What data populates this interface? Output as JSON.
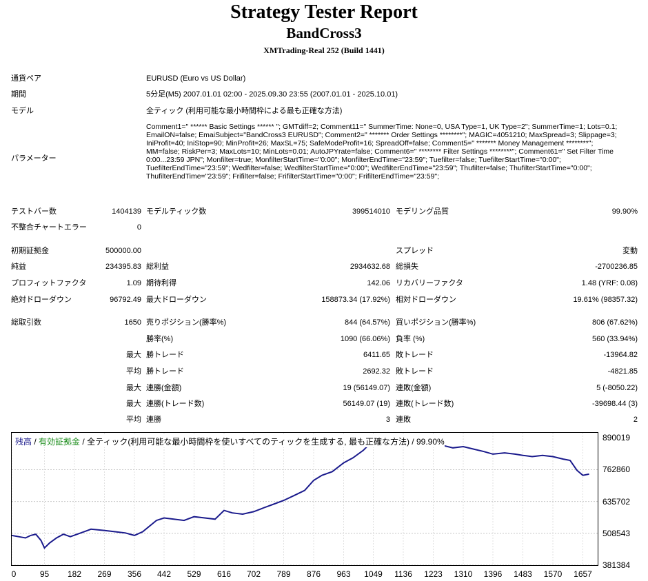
{
  "header": {
    "title": "Strategy Tester Report",
    "ea_name": "BandCross3",
    "server": "XMTrading-Real 252 (Build 1441)"
  },
  "info": {
    "pair_label": "通貨ペア",
    "pair_value": "EURUSD (Euro vs US Dollar)",
    "period_label": "期間",
    "period_value": "5分足(M5) 2007.01.01 02:00 - 2025.09.30 23:55 (2007.01.01 - 2025.10.01)",
    "model_label": "モデル",
    "model_value": "全ティック (利用可能な最小時間枠による最も正確な方法)",
    "params_label": "パラメーター",
    "params_value": "Comment1=\" ****** Basic Settings ****** \"; GMTdiff=2; Comment11=\" SummerTime: None=0, USA Type=1, UK Type=2\"; SummerTime=1; Lots=0.1; EmailON=false; EmaiSubject=\"BandCross3 EURUSD\"; Comment2=\" ******* Order Settings ********\"; MAGIC=4051210; MaxSpread=3; Slippage=3; IniProfit=40; IniStop=90; MinProfit=26; MaxSL=75; SafeModeProfit=16; SpreadOff=false; Comment5=\" ******* Money Management ********\"; MM=false; RiskPer=3; MaxLots=10; MinLots=0.01; AutoJPYrate=false; Comment6=\" ******** Filter Settings ********\"; Comment61=\" Set Filter Time 0:00...23:59 JPN\"; Monfilter=true; MonfilterStartTime=\"0:00\"; MonfilterEndTime=\"23:59\"; Tuefilter=false; TuefilterStartTime=\"0:00\"; TuefilterEndTime=\"23:59\"; Wedfilter=false; WedfilterStartTime=\"0:00\"; WedfilterEndTime=\"23:59\"; Thufilter=false; ThufilterStartTime=\"0:00\"; ThufilterEndTime=\"23:59\"; Frifilter=false; FrifilterStartTime=\"0:00\"; FrifilterEndTime=\"23:59\";"
  },
  "stats": {
    "bars_label": "テストバー数",
    "bars_value": "1404139",
    "ticks_label": "モデルティック数",
    "ticks_value": "399514010",
    "quality_label": "モデリング品質",
    "quality_value": "99.90%",
    "mismatch_label": "不整合チャートエラー",
    "mismatch_value": "0",
    "deposit_label": "初期証拠金",
    "deposit_value": "500000.00",
    "spread_label": "スプレッド",
    "spread_value": "変動",
    "netprofit_label": "純益",
    "netprofit_value": "234395.83",
    "grossprofit_label": "総利益",
    "grossprofit_value": "2934632.68",
    "grossloss_label": "総損失",
    "grossloss_value": "-2700236.85",
    "pf_label": "プロフィットファクタ",
    "pf_value": "1.09",
    "expected_label": "期待利得",
    "expected_value": "142.06",
    "recovery_label": "リカバリーファクタ",
    "recovery_value": "1.48 (YRF: 0.08)",
    "absdd_label": "絶対ドローダウン",
    "absdd_value": "96792.49",
    "maxdd_label": "最大ドローダウン",
    "maxdd_value": "158873.34 (17.92%)",
    "reldd_label": "相対ドローダウン",
    "reldd_value": "19.61% (98357.32)",
    "trades_label": "総取引数",
    "trades_value": "1650",
    "short_label": "売りポジション(勝率%)",
    "short_value": "844 (64.57%)",
    "long_label": "買いポジション(勝率%)",
    "long_value": "806 (67.62%)",
    "winrate_label": "勝率(%)",
    "winrate_value": "1090 (66.06%)",
    "lossrate_label": "負率 (%)",
    "lossrate_value": "560 (33.94%)",
    "max_word": "最大",
    "avg_word": "平均",
    "largest_win_label": "勝トレード",
    "largest_win_value": "6411.65",
    "largest_loss_label": "敗トレード",
    "largest_loss_value": "-13964.82",
    "avg_win_label": "勝トレード",
    "avg_win_value": "2692.32",
    "avg_loss_label": "敗トレード",
    "avg_loss_value": "-4821.85",
    "consec_win_amt_label": "連勝(金額)",
    "consec_win_amt_value": "19 (56149.07)",
    "consec_loss_amt_label": "連敗(金額)",
    "consec_loss_amt_value": "5 (-8050.22)",
    "consec_win_cnt_label": "連勝(トレード数)",
    "consec_win_cnt_value": "56149.07 (19)",
    "consec_loss_cnt_label": "連敗(トレード数)",
    "consec_loss_cnt_value": "-39698.44 (3)",
    "avg_consec_win_label": "連勝",
    "avg_consec_win_value": "3",
    "avg_consec_loss_label": "連敗",
    "avg_consec_loss_value": "2"
  },
  "chart_legend": {
    "balance": "残高",
    "sep1": " / ",
    "equity": "有効証拠金",
    "sep2": " / ",
    "model": "全ティック(利用可能な最小時間枠を使いすべてのティックを生成する, 最も正確な方法) / 99.90%",
    "balance_color": "#1a1a8c",
    "equity_color": "#1a8c1a"
  },
  "chart_data": {
    "type": "line",
    "title": "",
    "xlabel": "",
    "ylabel": "",
    "xlim": [
      0,
      1700
    ],
    "ylim": [
      381384,
      910000
    ],
    "x_ticks": [
      "0",
      "95",
      "182",
      "269",
      "356",
      "442",
      "529",
      "616",
      "702",
      "789",
      "876",
      "963",
      "1049",
      "1136",
      "1223",
      "1310",
      "1396",
      "1483",
      "1570",
      "1657"
    ],
    "y_ticks": [
      "890019",
      "762860",
      "635702",
      "508543",
      "381384"
    ],
    "grid": true,
    "series": [
      {
        "color": "#1a1a8c",
        "x": [
          0,
          20,
          40,
          55,
          70,
          85,
          95,
          110,
          130,
          150,
          170,
          200,
          230,
          270,
          300,
          330,
          356,
          380,
          420,
          442,
          470,
          500,
          529,
          560,
          590,
          616,
          640,
          670,
          702,
          730,
          760,
          789,
          820,
          850,
          876,
          900,
          930,
          963,
          990,
          1020,
          1049,
          1080,
          1110,
          1136,
          1160,
          1190,
          1223,
          1250,
          1280,
          1310,
          1340,
          1370,
          1396,
          1430,
          1460,
          1483,
          1510,
          1540,
          1570,
          1600,
          1620,
          1640,
          1657,
          1675
        ],
        "values": [
          500000,
          495000,
          490000,
          500000,
          505000,
          480000,
          450000,
          470000,
          490000,
          505000,
          495000,
          510000,
          525000,
          520000,
          515000,
          510000,
          500000,
          515000,
          560000,
          570000,
          565000,
          560000,
          575000,
          570000,
          565000,
          600000,
          590000,
          585000,
          595000,
          610000,
          625000,
          640000,
          660000,
          680000,
          720000,
          740000,
          755000,
          790000,
          810000,
          840000,
          880000,
          875000,
          865000,
          880000,
          860000,
          870000,
          875000,
          860000,
          850000,
          855000,
          845000,
          835000,
          825000,
          830000,
          825000,
          820000,
          815000,
          820000,
          815000,
          805000,
          800000,
          760000,
          740000,
          745000
        ]
      }
    ]
  }
}
